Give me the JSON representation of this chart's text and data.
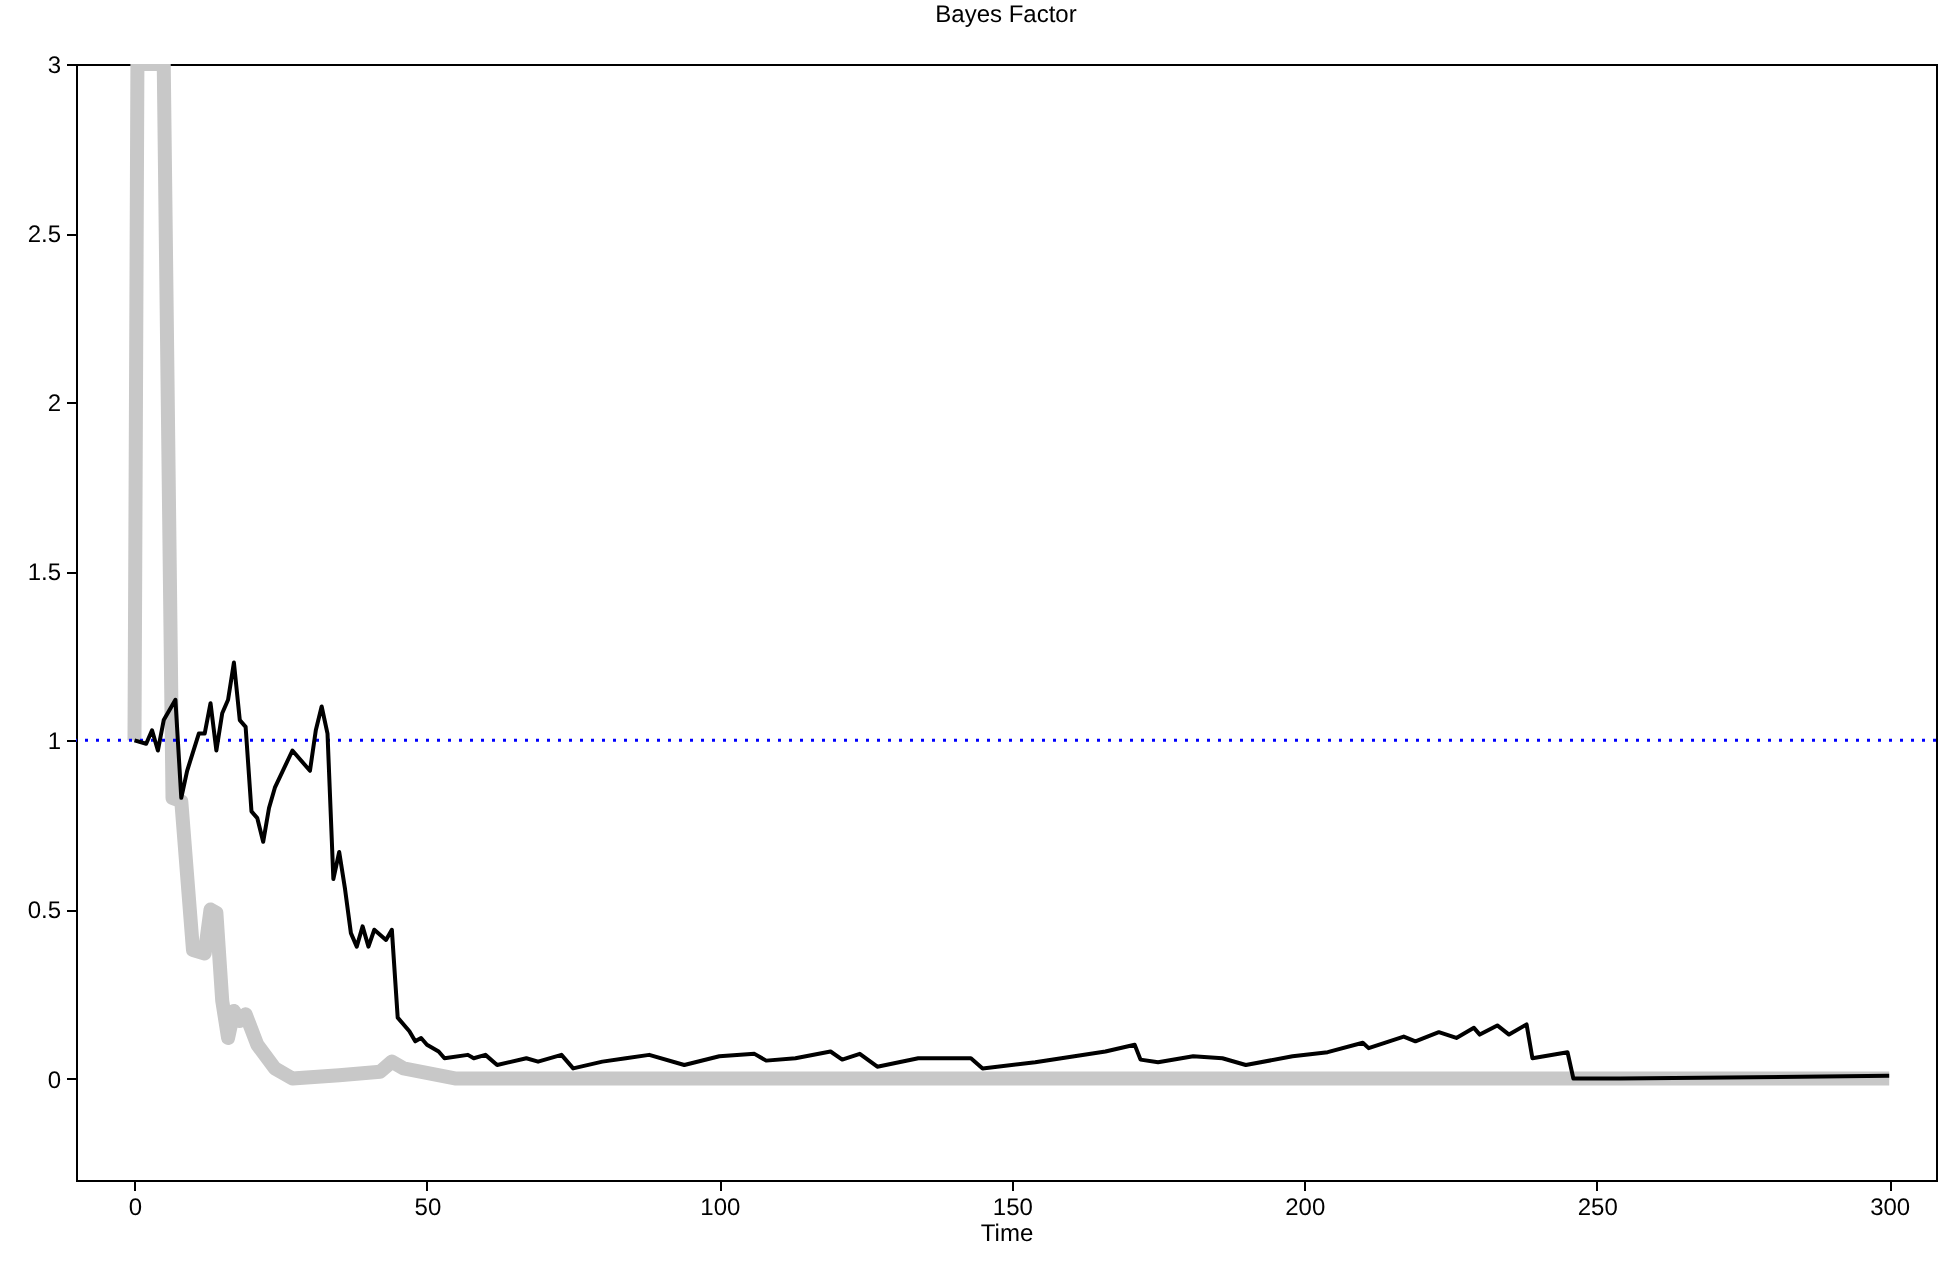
{
  "chart_data": {
    "type": "line",
    "title": "Bayes Factor",
    "xlabel": "Time",
    "xlim": [
      -10,
      308
    ],
    "ylim": [
      -0.3,
      3
    ],
    "xticks": [
      0,
      50,
      100,
      150,
      200,
      250,
      300
    ],
    "yticks": [
      0,
      0.5,
      1,
      1.5,
      2,
      2.5,
      3
    ],
    "grid": false,
    "ref_lines": [
      {
        "axis": "y",
        "value": 1,
        "color": "#0000ff",
        "line_style": "dotted"
      }
    ],
    "series": [
      {
        "color": "#c8c8c8",
        "x": [
          0,
          0.5,
          5,
          6.5,
          8,
          10,
          12,
          13,
          14,
          15,
          16,
          17,
          18,
          19,
          21,
          24,
          27,
          35,
          42,
          44,
          46,
          55,
          300
        ],
        "values": [
          1,
          3,
          3,
          0.83,
          0.82,
          0.38,
          0.37,
          0.5,
          0.49,
          0.23,
          0.12,
          0.2,
          0.17,
          0.19,
          0.1,
          0.03,
          0,
          0.01,
          0.02,
          0.05,
          0.03,
          0,
          0
        ]
      },
      {
        "color": "#000000",
        "x": [
          0,
          2,
          3,
          4,
          5,
          7,
          8,
          9,
          11,
          12,
          13,
          14,
          15,
          16,
          17,
          18,
          19,
          20,
          21,
          22,
          23,
          24,
          27,
          30,
          31,
          32,
          33,
          34,
          35,
          36,
          37,
          38,
          39,
          40,
          41,
          43,
          44,
          45,
          47,
          48,
          49,
          50,
          52,
          53,
          57,
          58,
          60,
          62,
          67,
          69,
          73,
          75,
          80,
          84,
          88,
          94,
          100,
          106,
          108,
          113,
          119,
          121,
          124,
          127,
          134,
          143,
          145,
          154,
          166,
          171,
          172,
          175,
          181,
          186,
          190,
          198,
          204,
          210,
          211,
          217,
          219,
          223,
          226,
          229,
          230,
          233,
          235,
          238,
          239,
          245,
          246,
          254,
          300
        ],
        "values": [
          1,
          0.99,
          1.03,
          0.97,
          1.06,
          1.12,
          0.83,
          0.91,
          1.02,
          1.02,
          1.11,
          0.97,
          1.08,
          1.12,
          1.23,
          1.06,
          1.04,
          0.79,
          0.77,
          0.7,
          0.8,
          0.86,
          0.97,
          0.91,
          1.03,
          1.1,
          1.02,
          0.59,
          0.67,
          0.56,
          0.43,
          0.39,
          0.45,
          0.39,
          0.44,
          0.41,
          0.44,
          0.18,
          0.14,
          0.11,
          0.12,
          0.1,
          0.08,
          0.06,
          0.07,
          0.06,
          0.07,
          0.04,
          0.06,
          0.05,
          0.07,
          0.03,
          0.05,
          0.06,
          0.07,
          0.04,
          0.066,
          0.073,
          0.053,
          0.06,
          0.08,
          0.056,
          0.073,
          0.035,
          0.06,
          0.06,
          0.03,
          0.048,
          0.08,
          0.1,
          0.056,
          0.048,
          0.066,
          0.06,
          0.04,
          0.066,
          0.078,
          0.106,
          0.09,
          0.124,
          0.11,
          0.137,
          0.12,
          0.15,
          0.13,
          0.157,
          0.13,
          0.16,
          0.06,
          0.078,
          0,
          0,
          0.008
        ]
      }
    ]
  }
}
